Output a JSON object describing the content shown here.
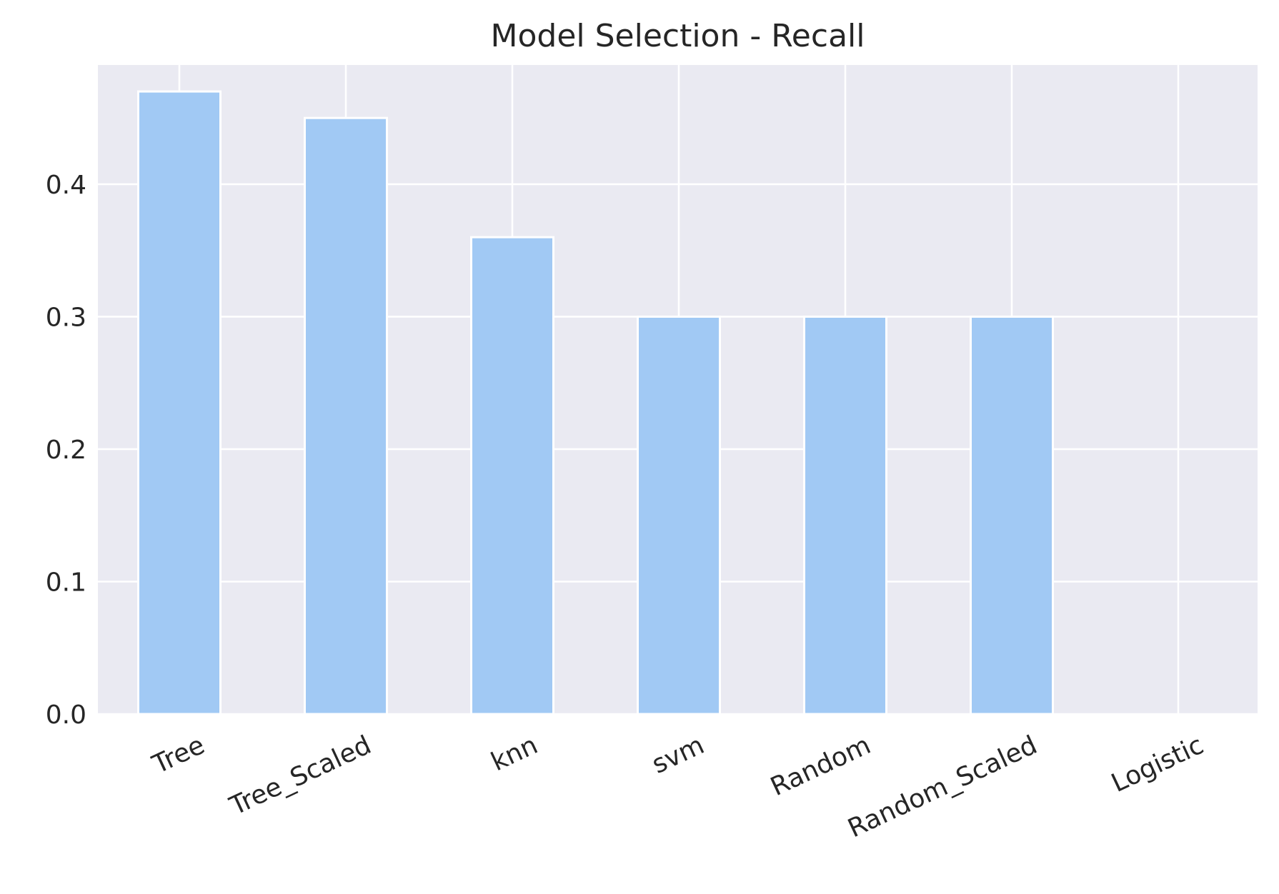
{
  "chart_data": {
    "type": "bar",
    "title": "Model Selection - Recall",
    "xlabel": "",
    "ylabel": "",
    "categories": [
      "Tree",
      "Tree_Scaled",
      "knn",
      "svm",
      "Random",
      "Random_Scaled",
      "Logistic"
    ],
    "values": [
      0.47,
      0.45,
      0.36,
      0.3,
      0.3,
      0.3,
      0.0
    ],
    "ylim": [
      0,
      0.49
    ],
    "yticks": [
      "0.0",
      "0.1",
      "0.2",
      "0.3",
      "0.4"
    ],
    "grid": true,
    "legend": "none",
    "xtick_rotation_deg": -25,
    "colors": {
      "bar": "#a1c9f4",
      "plot_background": "#eaeaf2",
      "grid": "#ffffff",
      "text": "#262626"
    }
  }
}
